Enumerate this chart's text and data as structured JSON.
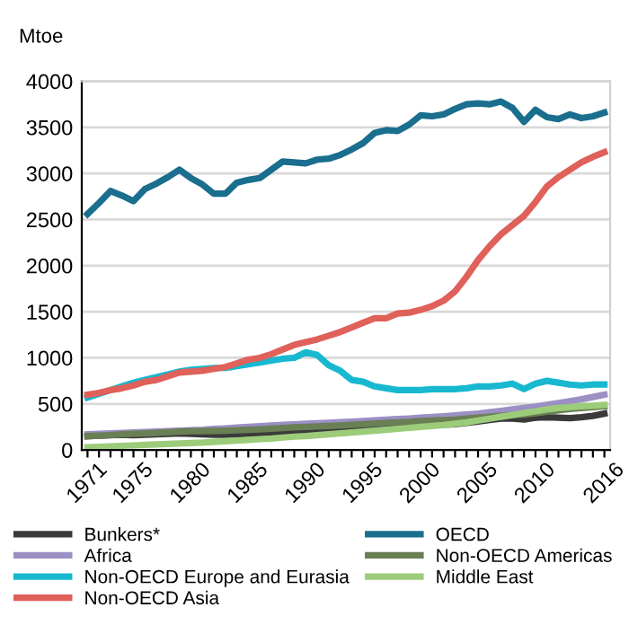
{
  "chart_data": {
    "type": "line",
    "ylabel": "Mtoe",
    "x": [
      1971,
      1972,
      1973,
      1974,
      1975,
      1976,
      1977,
      1978,
      1979,
      1980,
      1981,
      1982,
      1983,
      1984,
      1985,
      1986,
      1987,
      1988,
      1989,
      1990,
      1991,
      1992,
      1993,
      1994,
      1995,
      1996,
      1997,
      1998,
      1999,
      2000,
      2001,
      2002,
      2003,
      2004,
      2005,
      2006,
      2007,
      2008,
      2009,
      2010,
      2011,
      2012,
      2013,
      2014,
      2015,
      2016
    ],
    "series": [
      {
        "name": "Bunkers*",
        "color": "#3a3a3a",
        "values": [
          150,
          155,
          160,
          165,
          160,
          165,
          170,
          175,
          180,
          175,
          170,
          165,
          165,
          170,
          175,
          180,
          185,
          190,
          195,
          200,
          205,
          210,
          215,
          220,
          230,
          240,
          250,
          255,
          265,
          270,
          270,
          275,
          280,
          295,
          310,
          325,
          340,
          340,
          330,
          350,
          355,
          350,
          345,
          355,
          370,
          395
        ]
      },
      {
        "name": "OECD",
        "color": "#1a6e8e",
        "values": [
          2560,
          2680,
          2810,
          2760,
          2700,
          2830,
          2890,
          2960,
          3040,
          2950,
          2880,
          2780,
          2780,
          2900,
          2930,
          2950,
          3040,
          3130,
          3120,
          3110,
          3150,
          3160,
          3200,
          3260,
          3330,
          3440,
          3470,
          3460,
          3530,
          3630,
          3620,
          3640,
          3700,
          3750,
          3760,
          3750,
          3780,
          3710,
          3560,
          3690,
          3610,
          3590,
          3640,
          3600,
          3620,
          3660
        ]
      },
      {
        "name": "Africa",
        "color": "#9b8fc4",
        "values": [
          170,
          175,
          180,
          185,
          190,
          195,
          200,
          205,
          210,
          215,
          220,
          228,
          235,
          243,
          250,
          258,
          265,
          272,
          278,
          285,
          290,
          296,
          302,
          308,
          315,
          322,
          330,
          336,
          342,
          350,
          358,
          366,
          375,
          385,
          395,
          410,
          425,
          440,
          455,
          470,
          490,
          510,
          530,
          550,
          575,
          600
        ]
      },
      {
        "name": "Non-OECD Americas",
        "color": "#6a7f54",
        "values": [
          150,
          155,
          162,
          170,
          175,
          180,
          186,
          192,
          200,
          205,
          205,
          207,
          210,
          215,
          220,
          225,
          232,
          238,
          245,
          250,
          255,
          260,
          266,
          272,
          280,
          288,
          295,
          300,
          305,
          315,
          320,
          325,
          330,
          340,
          350,
          360,
          370,
          380,
          385,
          400,
          415,
          430,
          445,
          455,
          465,
          475
        ]
      },
      {
        "name": "Non-OECD Europe and Eurasia",
        "color": "#17b8d0",
        "values": [
          570,
          610,
          650,
          690,
          730,
          760,
          790,
          820,
          850,
          870,
          880,
          890,
          890,
          910,
          930,
          950,
          970,
          990,
          1000,
          1060,
          1030,
          920,
          860,
          760,
          740,
          690,
          670,
          650,
          650,
          650,
          660,
          660,
          660,
          670,
          690,
          690,
          700,
          720,
          660,
          720,
          750,
          730,
          710,
          700,
          710,
          710
        ]
      },
      {
        "name": "Middle East",
        "color": "#9ccc7a",
        "values": [
          30,
          35,
          40,
          45,
          50,
          55,
          60,
          65,
          70,
          75,
          80,
          88,
          95,
          102,
          110,
          118,
          125,
          135,
          145,
          150,
          160,
          170,
          180,
          190,
          200,
          210,
          220,
          230,
          240,
          250,
          260,
          270,
          285,
          300,
          320,
          340,
          360,
          380,
          400,
          420,
          440,
          455,
          465,
          475,
          480,
          490
        ]
      },
      {
        "name": "Non-OECD Asia",
        "color": "#e0605a",
        "values": [
          600,
          620,
          650,
          670,
          700,
          740,
          760,
          800,
          840,
          850,
          860,
          880,
          900,
          940,
          980,
          1000,
          1040,
          1090,
          1140,
          1170,
          1200,
          1240,
          1280,
          1330,
          1380,
          1430,
          1430,
          1480,
          1490,
          1520,
          1560,
          1620,
          1720,
          1880,
          2060,
          2210,
          2340,
          2440,
          2540,
          2690,
          2860,
          2960,
          3040,
          3120,
          3180,
          3230
        ]
      }
    ],
    "xlim": [
      1970.5,
      2016.5
    ],
    "xticks": [
      1971,
      {
        "value": 1972,
        "label": null
      },
      {
        "value": 1973,
        "label": null
      },
      {
        "value": 1974,
        "label": null
      },
      1975,
      {
        "value": 1976,
        "label": null
      },
      {
        "value": 1977,
        "label": null
      },
      {
        "value": 1978,
        "label": null
      },
      {
        "value": 1979,
        "label": null
      },
      1980,
      {
        "value": 1981,
        "label": null
      },
      {
        "value": 1982,
        "label": null
      },
      {
        "value": 1983,
        "label": null
      },
      {
        "value": 1984,
        "label": null
      },
      1985,
      {
        "value": 1986,
        "label": null
      },
      {
        "value": 1987,
        "label": null
      },
      {
        "value": 1988,
        "label": null
      },
      {
        "value": 1989,
        "label": null
      },
      1990,
      {
        "value": 1991,
        "label": null
      },
      {
        "value": 1992,
        "label": null
      },
      {
        "value": 1993,
        "label": null
      },
      {
        "value": 1994,
        "label": null
      },
      1995,
      {
        "value": 1996,
        "label": null
      },
      {
        "value": 1997,
        "label": null
      },
      {
        "value": 1998,
        "label": null
      },
      {
        "value": 1999,
        "label": null
      },
      2000,
      {
        "value": 2001,
        "label": null
      },
      {
        "value": 2002,
        "label": null
      },
      {
        "value": 2003,
        "label": null
      },
      {
        "value": 2004,
        "label": null
      },
      2005,
      {
        "value": 2006,
        "label": null
      },
      {
        "value": 2007,
        "label": null
      },
      {
        "value": 2008,
        "label": null
      },
      {
        "value": 2009,
        "label": null
      },
      2010,
      {
        "value": 2011,
        "label": null
      },
      {
        "value": 2012,
        "label": null
      },
      {
        "value": 2013,
        "label": null
      },
      {
        "value": 2014,
        "label": null
      },
      {
        "value": 2015,
        "label": null
      },
      2016
    ],
    "ylim": [
      0,
      4000
    ],
    "yticks": [
      0,
      500,
      1000,
      1500,
      2000,
      2500,
      3000,
      3500,
      4000
    ],
    "grid": "y",
    "legend": "bottom",
    "marker": "none",
    "line_style": "solid"
  }
}
